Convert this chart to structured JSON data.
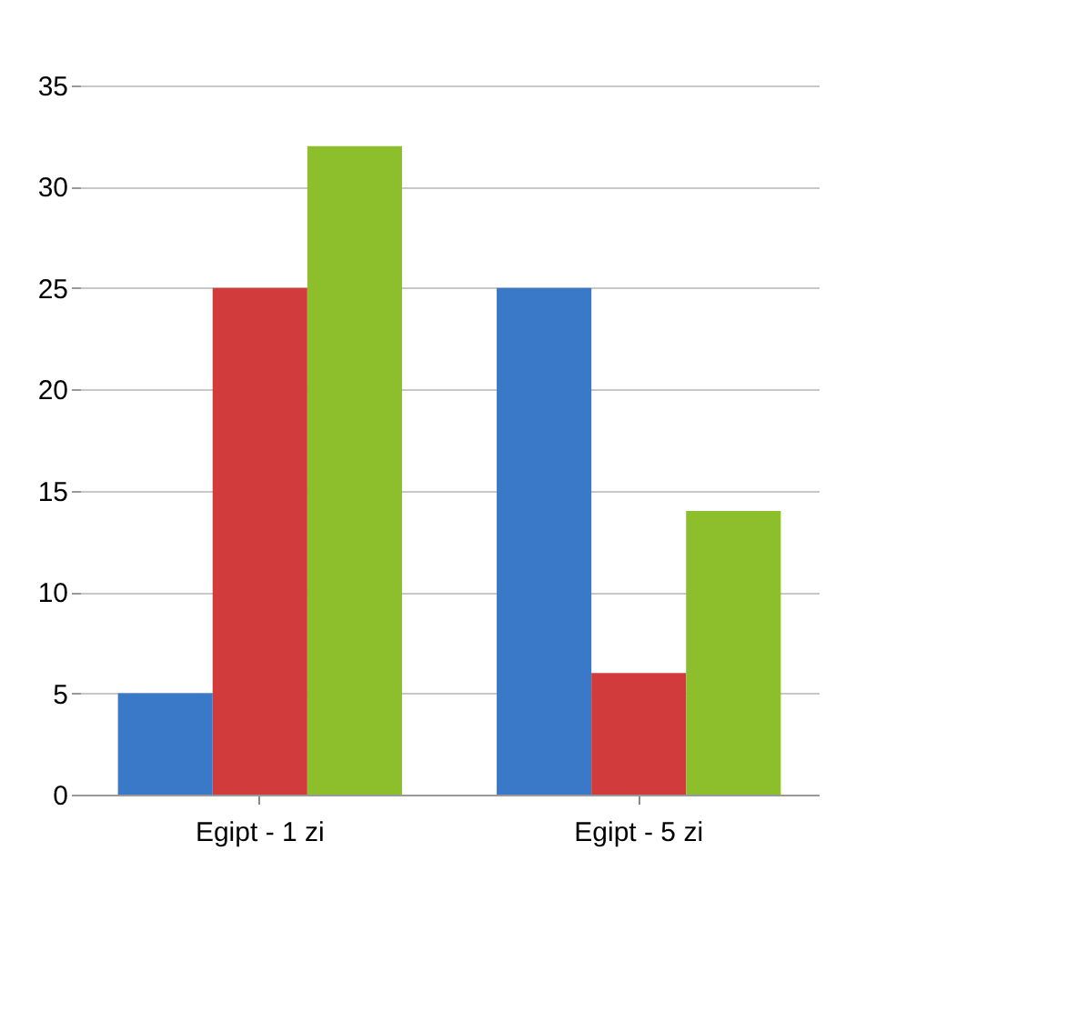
{
  "chart_data": {
    "type": "bar",
    "categories": [
      "Egipt - 1 zi",
      "Egipt - 5 zi"
    ],
    "series": [
      {
        "color": "#3a78c8",
        "values": [
          5,
          25
        ]
      },
      {
        "color": "#d23b3b",
        "values": [
          25,
          6
        ]
      },
      {
        "color": "#8dbf2c",
        "values": [
          32,
          14
        ]
      }
    ],
    "ylim": [
      0,
      35
    ],
    "yticks": [
      0,
      5,
      10,
      15,
      20,
      25,
      30,
      35
    ],
    "grid": "y"
  }
}
